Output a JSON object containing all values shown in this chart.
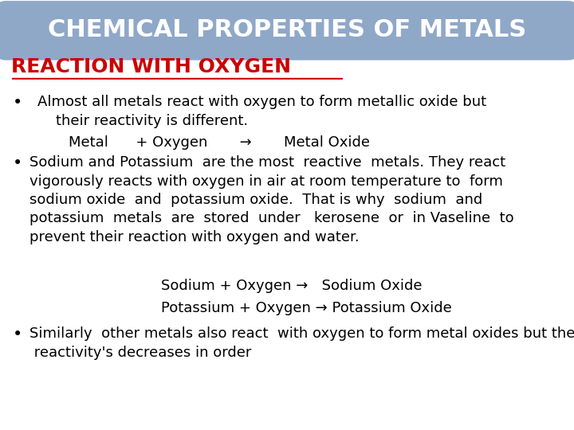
{
  "bg_color": "#ffffff",
  "header_bg_color": "#8fa8c8",
  "header_text": "CHEMICAL PROPERTIES OF METALS",
  "header_text_color": "#ffffff",
  "section_title": "REACTION WITH OXYGEN",
  "section_title_color": "#cc0000",
  "font_size_header": 22,
  "font_size_section": 18,
  "font_size_body": 13,
  "bullet1": "Almost all metals react with oxygen to form metallic oxide but\n    their reactivity is different.",
  "eq1": "Metal      + Oxygen       →       Metal Oxide",
  "bullet2_line1": "Sodium and Potassium  are the most  reactive  metals. They react",
  "bullet2_line2": "vigorously reacts with oxygen in air at room temperature to  form",
  "bullet2_line3": "sodium oxide  and  potassium oxide.  That is why  sodium  and",
  "bullet2_line4": "potassium  metals  are  stored  under   kerosene  or  in Vaseline  to",
  "bullet2_line5": "prevent their reaction with oxygen and water.",
  "eq2": "Sodium + Oxygen →   Sodium Oxide",
  "eq3": "Potassium + Oxygen → Potassium Oxide",
  "bullet3": "Similarly  other metals also react  with oxygen to form metal oxides but their\n reactivity's decreases in order",
  "underline_color": "#cc0000"
}
